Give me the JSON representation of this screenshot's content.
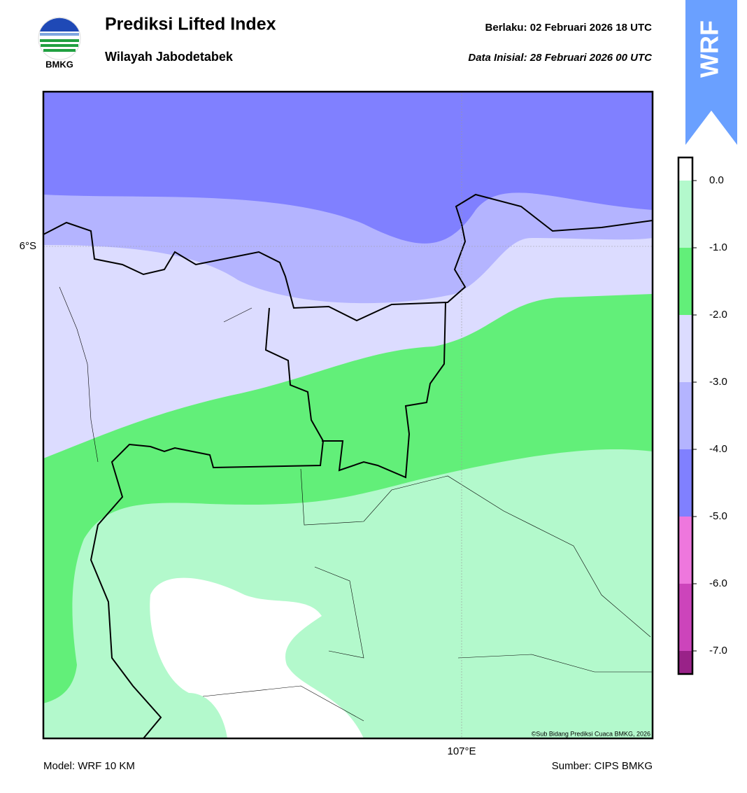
{
  "header": {
    "logo_text": "BMKG",
    "title": "Prediksi Lifted Index",
    "subtitle": "Wilayah Jabodetabek",
    "valid": "Berlaku:  02 Februari 2026 18 UTC",
    "init": "Data Inisial:  28 Februari 2026 00 UTC",
    "badge": "WRF"
  },
  "map": {
    "lat_label": "6°S",
    "lon_label": "107°E",
    "credit": "©Sub Bidang Prediksi Cuaca BMKG, 2026"
  },
  "colorbar": {
    "colors": [
      "#ffffff",
      "#b3f9cc",
      "#62ef79",
      "#dcdcff",
      "#b4b4ff",
      "#8080ff",
      "#ee77dd",
      "#cc44bb",
      "#992288"
    ],
    "labels": [
      "0.0",
      "-1.0",
      "-2.0",
      "-3.0",
      "-4.0",
      "-5.0",
      "-6.0",
      "-7.0"
    ]
  },
  "footer": {
    "model": "Model: WRF 10 KM",
    "source": "Sumber: CIPS BMKG"
  }
}
